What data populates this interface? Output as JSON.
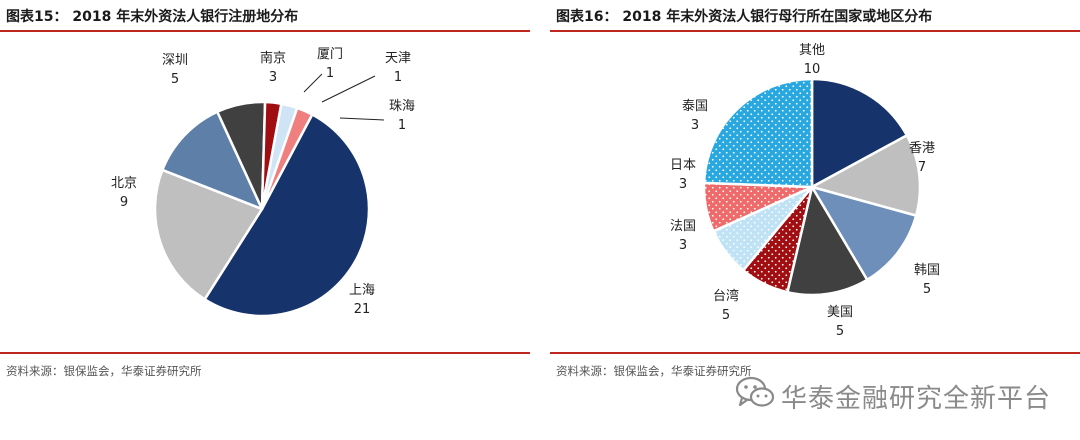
{
  "panels": [
    {
      "title": "图表15：  2018 年末外资法人银行注册地分布",
      "source": "资料来源：银保监会，华泰证券研究所"
    },
    {
      "title": "图表16：  2018 年末外资法人银行母行所在国家或地区分布",
      "source": "资料来源：银保监会，华泰证券研究所"
    }
  ],
  "watermark": {
    "text": "华泰金融研究全新平台",
    "icon": "wechat-icon"
  },
  "chart_data": [
    {
      "type": "pie",
      "start_angle_deg": 28,
      "slices": [
        {
          "name": "上海",
          "value": 21,
          "color": "#17336b"
        },
        {
          "name": "北京",
          "value": 9,
          "color": "#bfbfbf"
        },
        {
          "name": "深圳",
          "value": 5,
          "color": "#5e7fa8"
        },
        {
          "name": "南京",
          "value": 3,
          "color": "#404040"
        },
        {
          "name": "厦门",
          "value": 1,
          "color": "#a00e12"
        },
        {
          "name": "天津",
          "value": 1,
          "color": "#cfe4f5"
        },
        {
          "name": "珠海",
          "value": 1,
          "color": "#f08080"
        }
      ]
    },
    {
      "type": "pie",
      "start_angle_deg": 0,
      "slices": [
        {
          "name": "香港",
          "value": 7,
          "color": "#17336b"
        },
        {
          "name": "韩国",
          "value": 5,
          "color": "#bfbfbf"
        },
        {
          "name": "美国",
          "value": 5,
          "color": "#6f8fbb"
        },
        {
          "name": "台湾",
          "value": 5,
          "color": "#404040"
        },
        {
          "name": "法国",
          "value": 3,
          "color": "#a00e12",
          "pattern": "dots"
        },
        {
          "name": "日本",
          "value": 3,
          "color": "#bfe2f5",
          "pattern": "dots"
        },
        {
          "name": "泰国",
          "value": 3,
          "color": "#ef6a6a",
          "pattern": "dots"
        },
        {
          "name": "其他",
          "value": 10,
          "color": "#29a8e0",
          "pattern": "dots"
        }
      ]
    }
  ]
}
